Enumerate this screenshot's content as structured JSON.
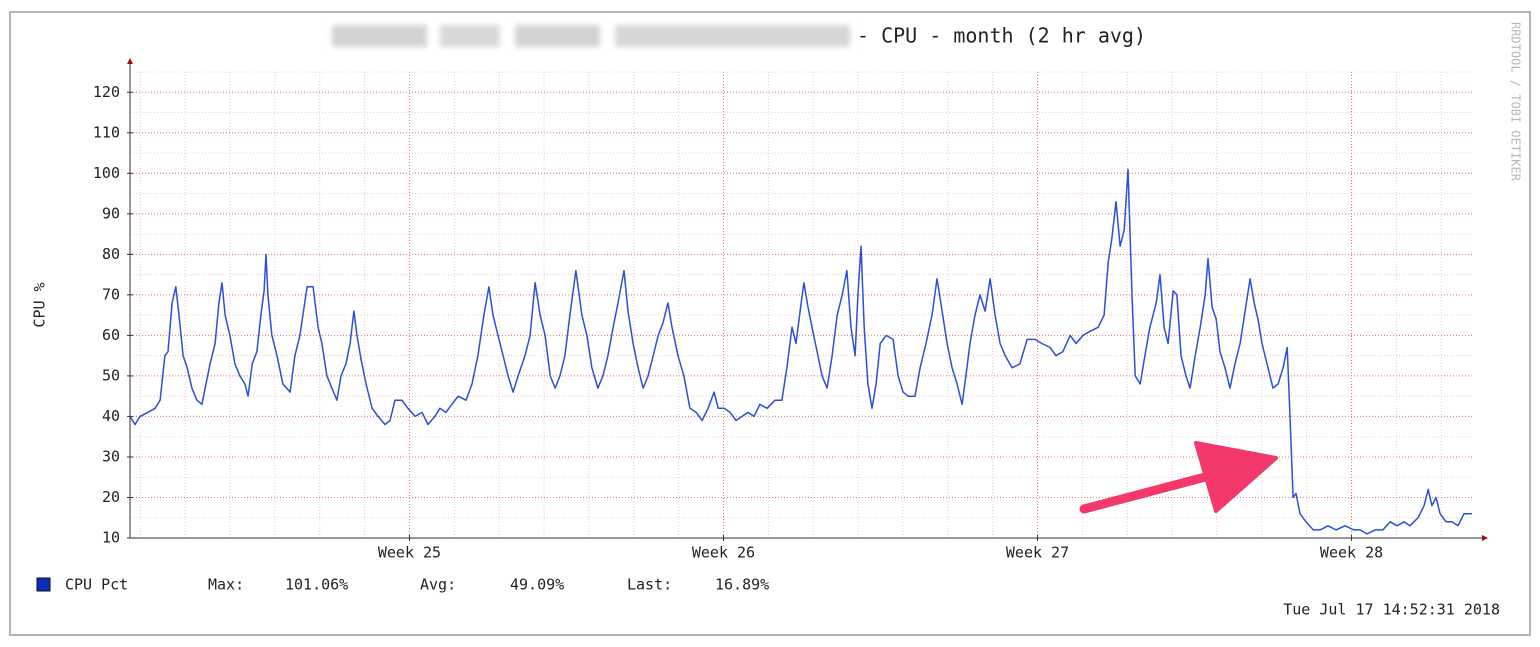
{
  "chart_data": {
    "type": "line",
    "title": "- CPU - month (2 hr avg)",
    "y_label": "CPU %",
    "watermark": "RRDTOOL / TOBI OETIKER",
    "timestamp": "Tue Jul 17 14:52:31 2018",
    "legend": {
      "stats": [
        {
          "label": "Max:",
          "value": "101.06%"
        },
        {
          "label": "Avg:",
          "value": "49.09%"
        },
        {
          "label": "Last:",
          "value": "16.89%"
        }
      ]
    },
    "ylim": [
      10,
      125
    ],
    "yticks": [
      10,
      20,
      30,
      40,
      50,
      60,
      70,
      80,
      90,
      100,
      110,
      120
    ],
    "xlim": [
      24.11,
      28.39
    ],
    "xticks": [
      {
        "value": 25,
        "label": "Week 25"
      },
      {
        "value": 26,
        "label": "Week 26"
      },
      {
        "value": 27,
        "label": "Week 27"
      },
      {
        "value": 28,
        "label": "Week 28"
      }
    ],
    "grid": true,
    "x_minor_per_tick": 7,
    "y_minor_per_tick": 2,
    "x": [
      24.11,
      24.126,
      24.142,
      24.167,
      24.19,
      24.206,
      24.221,
      24.231,
      24.244,
      24.256,
      24.266,
      24.279,
      24.292,
      24.307,
      24.323,
      24.339,
      24.352,
      24.365,
      24.381,
      24.393,
      24.403,
      24.413,
      24.428,
      24.444,
      24.46,
      24.476,
      24.486,
      24.499,
      24.514,
      24.527,
      24.537,
      24.543,
      24.549,
      24.562,
      24.578,
      24.597,
      24.62,
      24.635,
      24.651,
      24.674,
      24.693,
      24.709,
      24.721,
      24.737,
      24.753,
      24.769,
      24.782,
      24.798,
      24.811,
      24.823,
      24.833,
      24.846,
      24.862,
      24.881,
      24.9,
      24.922,
      24.938,
      24.954,
      24.976,
      24.995,
      25.018,
      25.04,
      25.059,
      25.081,
      25.097,
      25.116,
      25.135,
      25.155,
      25.18,
      25.199,
      25.218,
      25.237,
      25.253,
      25.266,
      25.282,
      25.298,
      25.314,
      25.33,
      25.346,
      25.368,
      25.384,
      25.4,
      25.416,
      25.432,
      25.448,
      25.464,
      25.479,
      25.495,
      25.511,
      25.53,
      25.549,
      25.565,
      25.581,
      25.6,
      25.616,
      25.632,
      25.651,
      25.664,
      25.683,
      25.696,
      25.712,
      25.728,
      25.744,
      25.76,
      25.776,
      25.792,
      25.807,
      25.823,
      25.836,
      25.855,
      25.874,
      25.893,
      25.913,
      25.932,
      25.951,
      25.97,
      25.983,
      26.002,
      26.021,
      26.04,
      26.059,
      26.078,
      26.097,
      26.116,
      26.139,
      26.164,
      26.186,
      26.202,
      26.218,
      26.231,
      26.244,
      26.256,
      26.269,
      26.282,
      26.298,
      26.314,
      26.33,
      26.346,
      26.362,
      26.378,
      26.393,
      26.406,
      26.419,
      26.428,
      26.438,
      26.448,
      26.46,
      26.473,
      26.486,
      26.499,
      26.518,
      26.54,
      26.556,
      26.572,
      26.588,
      26.61,
      26.626,
      26.645,
      26.664,
      26.68,
      26.696,
      26.712,
      26.728,
      26.744,
      26.76,
      26.772,
      26.785,
      26.801,
      26.817,
      26.833,
      26.849,
      26.865,
      26.881,
      26.897,
      26.919,
      26.944,
      26.967,
      26.992,
      27.014,
      27.04,
      27.059,
      27.081,
      27.104,
      27.123,
      27.145,
      27.167,
      27.193,
      27.212,
      27.225,
      27.237,
      27.25,
      27.263,
      27.276,
      27.288,
      27.301,
      27.311,
      27.327,
      27.342,
      27.358,
      27.378,
      27.39,
      27.403,
      27.416,
      27.432,
      27.444,
      27.457,
      27.473,
      27.486,
      27.502,
      27.518,
      27.534,
      27.543,
      27.556,
      27.569,
      27.581,
      27.597,
      27.613,
      27.629,
      27.645,
      27.661,
      27.677,
      27.69,
      27.702,
      27.715,
      27.734,
      27.75,
      27.766,
      27.782,
      27.795,
      27.804,
      27.814,
      27.823,
      27.836,
      27.855,
      27.878,
      27.9,
      27.925,
      27.951,
      27.979,
      28.008,
      28.027,
      28.049,
      28.075,
      28.1,
      28.123,
      28.145,
      28.167,
      28.186,
      28.212,
      28.231,
      28.244,
      28.256,
      28.269,
      28.282,
      28.301,
      28.32,
      28.339,
      28.358,
      28.384
    ],
    "series": [
      {
        "name": "CPU Pct",
        "color": "#2b4fd8",
        "legend_color": "#0a2fc0",
        "values": [
          40,
          38,
          40,
          41,
          42,
          44,
          55,
          56,
          68,
          72,
          65,
          55,
          52,
          47,
          44,
          43,
          48,
          53,
          58,
          68,
          73,
          65,
          60,
          53,
          50,
          48,
          45,
          53,
          56,
          65,
          71,
          80,
          70,
          60,
          55,
          48,
          46,
          55,
          60,
          72,
          72,
          62,
          58,
          50,
          47,
          44,
          50,
          53,
          58,
          66,
          60,
          54,
          48,
          42,
          40,
          38,
          39,
          44,
          44,
          42,
          40,
          41,
          38,
          40,
          42,
          41,
          43,
          45,
          44,
          48,
          55,
          65,
          72,
          65,
          60,
          55,
          50,
          46,
          50,
          55,
          60,
          73,
          65,
          60,
          50,
          47,
          50,
          55,
          65,
          76,
          65,
          60,
          52,
          47,
          50,
          55,
          63,
          68,
          76,
          66,
          58,
          52,
          47,
          50,
          55,
          60,
          63,
          68,
          62,
          55,
          50,
          42,
          41,
          39,
          42,
          46,
          42,
          42,
          41,
          39,
          40,
          41,
          40,
          43,
          42,
          44,
          44,
          52,
          62,
          58,
          66,
          73,
          67,
          62,
          56,
          50,
          47,
          55,
          65,
          70,
          76,
          62,
          55,
          70,
          82,
          62,
          48,
          42,
          48,
          58,
          60,
          59,
          50,
          46,
          45,
          45,
          52,
          58,
          65,
          74,
          66,
          58,
          52,
          48,
          43,
          50,
          58,
          65,
          70,
          66,
          74,
          65,
          58,
          55,
          52,
          53,
          59,
          59,
          58,
          57,
          55,
          56,
          60,
          58,
          60,
          61,
          62,
          65,
          78,
          84,
          93,
          82,
          86,
          101,
          70,
          50,
          48,
          55,
          62,
          68,
          75,
          62,
          58,
          71,
          70,
          55,
          50,
          47,
          55,
          62,
          70,
          79,
          67,
          64,
          56,
          52,
          47,
          53,
          58,
          66,
          74,
          68,
          64,
          58,
          52,
          47,
          48,
          52,
          57,
          40,
          20,
          21,
          16,
          14,
          12,
          12,
          13,
          12,
          13,
          12,
          12,
          11,
          12,
          12,
          14,
          13,
          14,
          13,
          15,
          18,
          22,
          18,
          20,
          16,
          14,
          14,
          13,
          16,
          16
        ]
      }
    ]
  }
}
